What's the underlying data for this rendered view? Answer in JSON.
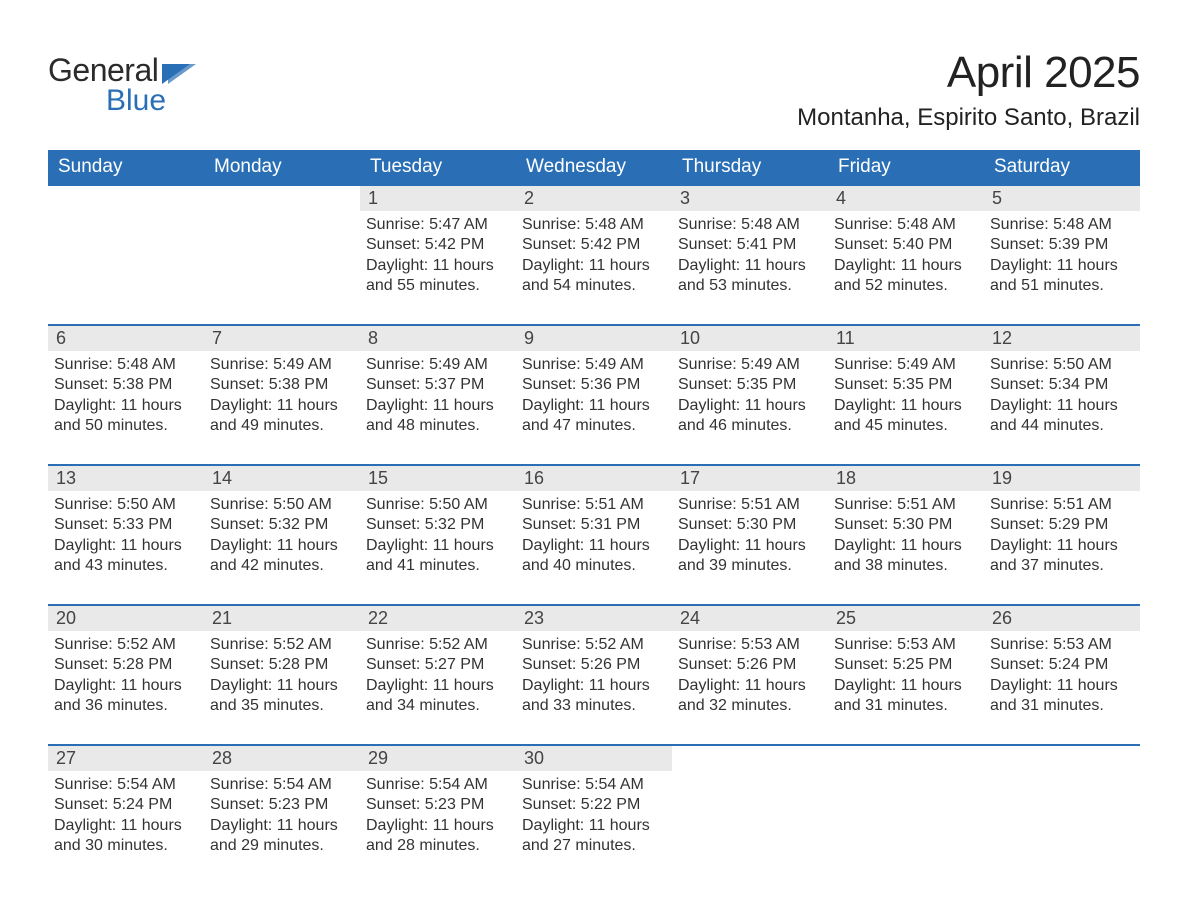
{
  "brand": {
    "general": "General",
    "blue": "Blue",
    "accent_color": "#2a6fb5"
  },
  "header": {
    "title": "April 2025",
    "location": "Montanha, Espirito Santo, Brazil"
  },
  "styling": {
    "header_bg": "#2a6fb5",
    "header_text": "#ffffff",
    "daynum_bg": "#e9e9e9",
    "cell_border": "#2a6fb5",
    "body_text": "#333333",
    "background": "#ffffff",
    "title_fontsize": 44,
    "location_fontsize": 24,
    "dayhead_fontsize": 19,
    "info_fontsize": 16
  },
  "calendar": {
    "type": "table-grid",
    "columns": [
      "Sunday",
      "Monday",
      "Tuesday",
      "Wednesday",
      "Thursday",
      "Friday",
      "Saturday"
    ],
    "weeks": [
      [
        {
          "day": "",
          "empty": true
        },
        {
          "day": "",
          "empty": true
        },
        {
          "day": "1",
          "sunrise": "Sunrise: 5:47 AM",
          "sunset": "Sunset: 5:42 PM",
          "daylight1": "Daylight: 11 hours",
          "daylight2": "and 55 minutes."
        },
        {
          "day": "2",
          "sunrise": "Sunrise: 5:48 AM",
          "sunset": "Sunset: 5:42 PM",
          "daylight1": "Daylight: 11 hours",
          "daylight2": "and 54 minutes."
        },
        {
          "day": "3",
          "sunrise": "Sunrise: 5:48 AM",
          "sunset": "Sunset: 5:41 PM",
          "daylight1": "Daylight: 11 hours",
          "daylight2": "and 53 minutes."
        },
        {
          "day": "4",
          "sunrise": "Sunrise: 5:48 AM",
          "sunset": "Sunset: 5:40 PM",
          "daylight1": "Daylight: 11 hours",
          "daylight2": "and 52 minutes."
        },
        {
          "day": "5",
          "sunrise": "Sunrise: 5:48 AM",
          "sunset": "Sunset: 5:39 PM",
          "daylight1": "Daylight: 11 hours",
          "daylight2": "and 51 minutes."
        }
      ],
      [
        {
          "day": "6",
          "sunrise": "Sunrise: 5:48 AM",
          "sunset": "Sunset: 5:38 PM",
          "daylight1": "Daylight: 11 hours",
          "daylight2": "and 50 minutes."
        },
        {
          "day": "7",
          "sunrise": "Sunrise: 5:49 AM",
          "sunset": "Sunset: 5:38 PM",
          "daylight1": "Daylight: 11 hours",
          "daylight2": "and 49 minutes."
        },
        {
          "day": "8",
          "sunrise": "Sunrise: 5:49 AM",
          "sunset": "Sunset: 5:37 PM",
          "daylight1": "Daylight: 11 hours",
          "daylight2": "and 48 minutes."
        },
        {
          "day": "9",
          "sunrise": "Sunrise: 5:49 AM",
          "sunset": "Sunset: 5:36 PM",
          "daylight1": "Daylight: 11 hours",
          "daylight2": "and 47 minutes."
        },
        {
          "day": "10",
          "sunrise": "Sunrise: 5:49 AM",
          "sunset": "Sunset: 5:35 PM",
          "daylight1": "Daylight: 11 hours",
          "daylight2": "and 46 minutes."
        },
        {
          "day": "11",
          "sunrise": "Sunrise: 5:49 AM",
          "sunset": "Sunset: 5:35 PM",
          "daylight1": "Daylight: 11 hours",
          "daylight2": "and 45 minutes."
        },
        {
          "day": "12",
          "sunrise": "Sunrise: 5:50 AM",
          "sunset": "Sunset: 5:34 PM",
          "daylight1": "Daylight: 11 hours",
          "daylight2": "and 44 minutes."
        }
      ],
      [
        {
          "day": "13",
          "sunrise": "Sunrise: 5:50 AM",
          "sunset": "Sunset: 5:33 PM",
          "daylight1": "Daylight: 11 hours",
          "daylight2": "and 43 minutes."
        },
        {
          "day": "14",
          "sunrise": "Sunrise: 5:50 AM",
          "sunset": "Sunset: 5:32 PM",
          "daylight1": "Daylight: 11 hours",
          "daylight2": "and 42 minutes."
        },
        {
          "day": "15",
          "sunrise": "Sunrise: 5:50 AM",
          "sunset": "Sunset: 5:32 PM",
          "daylight1": "Daylight: 11 hours",
          "daylight2": "and 41 minutes."
        },
        {
          "day": "16",
          "sunrise": "Sunrise: 5:51 AM",
          "sunset": "Sunset: 5:31 PM",
          "daylight1": "Daylight: 11 hours",
          "daylight2": "and 40 minutes."
        },
        {
          "day": "17",
          "sunrise": "Sunrise: 5:51 AM",
          "sunset": "Sunset: 5:30 PM",
          "daylight1": "Daylight: 11 hours",
          "daylight2": "and 39 minutes."
        },
        {
          "day": "18",
          "sunrise": "Sunrise: 5:51 AM",
          "sunset": "Sunset: 5:30 PM",
          "daylight1": "Daylight: 11 hours",
          "daylight2": "and 38 minutes."
        },
        {
          "day": "19",
          "sunrise": "Sunrise: 5:51 AM",
          "sunset": "Sunset: 5:29 PM",
          "daylight1": "Daylight: 11 hours",
          "daylight2": "and 37 minutes."
        }
      ],
      [
        {
          "day": "20",
          "sunrise": "Sunrise: 5:52 AM",
          "sunset": "Sunset: 5:28 PM",
          "daylight1": "Daylight: 11 hours",
          "daylight2": "and 36 minutes."
        },
        {
          "day": "21",
          "sunrise": "Sunrise: 5:52 AM",
          "sunset": "Sunset: 5:28 PM",
          "daylight1": "Daylight: 11 hours",
          "daylight2": "and 35 minutes."
        },
        {
          "day": "22",
          "sunrise": "Sunrise: 5:52 AM",
          "sunset": "Sunset: 5:27 PM",
          "daylight1": "Daylight: 11 hours",
          "daylight2": "and 34 minutes."
        },
        {
          "day": "23",
          "sunrise": "Sunrise: 5:52 AM",
          "sunset": "Sunset: 5:26 PM",
          "daylight1": "Daylight: 11 hours",
          "daylight2": "and 33 minutes."
        },
        {
          "day": "24",
          "sunrise": "Sunrise: 5:53 AM",
          "sunset": "Sunset: 5:26 PM",
          "daylight1": "Daylight: 11 hours",
          "daylight2": "and 32 minutes."
        },
        {
          "day": "25",
          "sunrise": "Sunrise: 5:53 AM",
          "sunset": "Sunset: 5:25 PM",
          "daylight1": "Daylight: 11 hours",
          "daylight2": "and 31 minutes."
        },
        {
          "day": "26",
          "sunrise": "Sunrise: 5:53 AM",
          "sunset": "Sunset: 5:24 PM",
          "daylight1": "Daylight: 11 hours",
          "daylight2": "and 31 minutes."
        }
      ],
      [
        {
          "day": "27",
          "sunrise": "Sunrise: 5:54 AM",
          "sunset": "Sunset: 5:24 PM",
          "daylight1": "Daylight: 11 hours",
          "daylight2": "and 30 minutes."
        },
        {
          "day": "28",
          "sunrise": "Sunrise: 5:54 AM",
          "sunset": "Sunset: 5:23 PM",
          "daylight1": "Daylight: 11 hours",
          "daylight2": "and 29 minutes."
        },
        {
          "day": "29",
          "sunrise": "Sunrise: 5:54 AM",
          "sunset": "Sunset: 5:23 PM",
          "daylight1": "Daylight: 11 hours",
          "daylight2": "and 28 minutes."
        },
        {
          "day": "30",
          "sunrise": "Sunrise: 5:54 AM",
          "sunset": "Sunset: 5:22 PM",
          "daylight1": "Daylight: 11 hours",
          "daylight2": "and 27 minutes."
        },
        {
          "day": "",
          "empty": true
        },
        {
          "day": "",
          "empty": true
        },
        {
          "day": "",
          "empty": true
        }
      ]
    ]
  }
}
